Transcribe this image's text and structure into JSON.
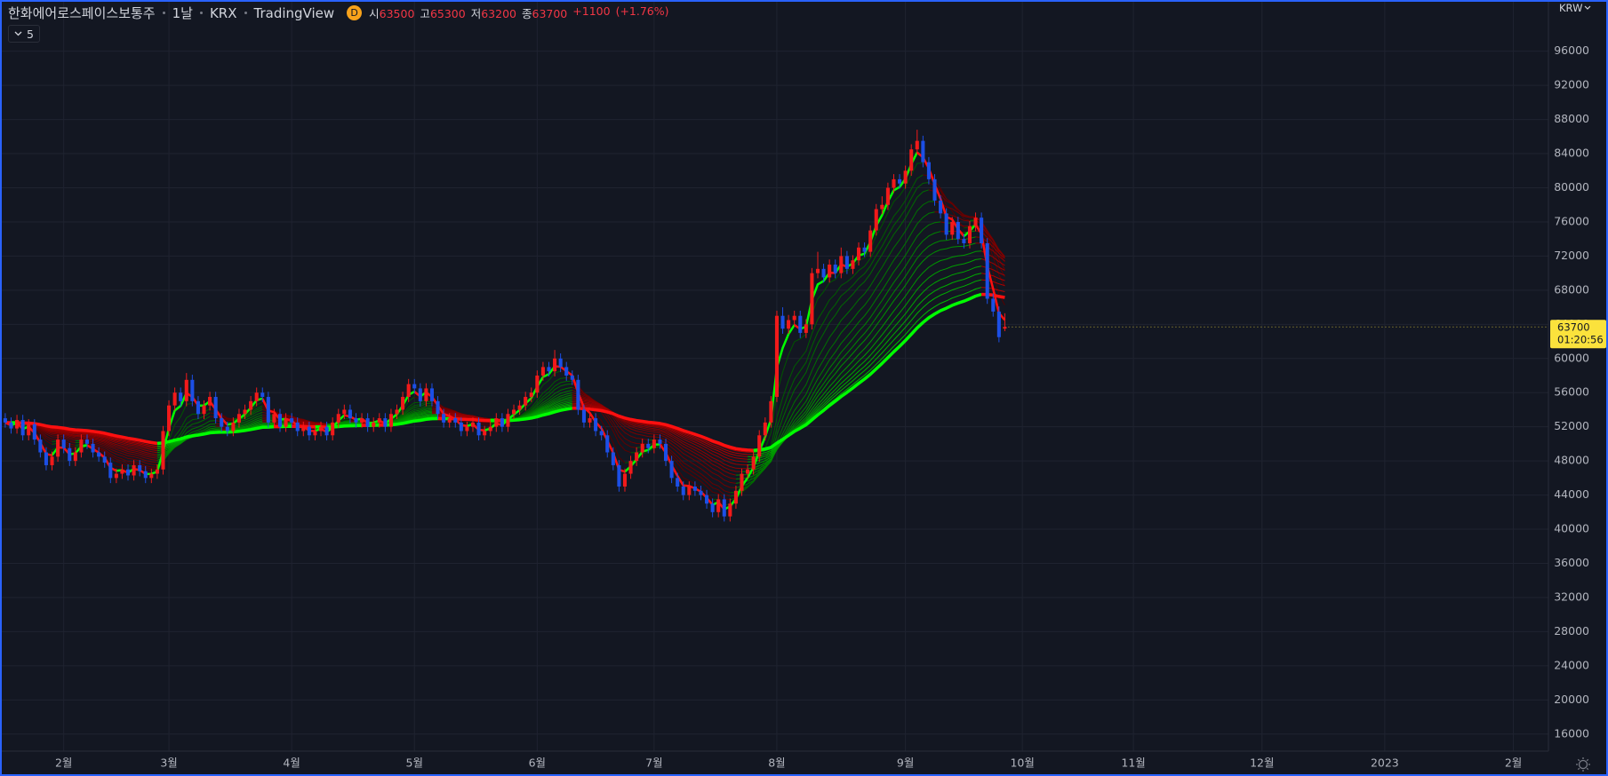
{
  "chart_data": {
    "type": "candlestick",
    "title": "한화에어로스페이스보통주",
    "interval": "1날",
    "exchange": "KRX",
    "source": "TradingView",
    "badge": "D",
    "ohlc_labels": [
      "시",
      "고",
      "저",
      "종"
    ],
    "change": "+1100",
    "change_pct": "(+1.76%)",
    "indicator_count": 5,
    "currency": "KRW",
    "countdown": "01:20:56",
    "up_color": "#f21a1a",
    "down_color": "#1c4fe6",
    "ema_periods": [
      3,
      5,
      8,
      10,
      12,
      15,
      18,
      21,
      24,
      27,
      30,
      34,
      38,
      42,
      46,
      50,
      55,
      60
    ],
    "xlim": [
      -0.9,
      264
    ],
    "xticks": [
      {
        "value": 10,
        "label": "2월"
      },
      {
        "value": 28,
        "label": "3월"
      },
      {
        "value": 49,
        "label": "4월"
      },
      {
        "value": 70,
        "label": "5월"
      },
      {
        "value": 91,
        "label": "6월"
      },
      {
        "value": 111,
        "label": "7월"
      },
      {
        "value": 132,
        "label": "8월"
      },
      {
        "value": 154,
        "label": "9월"
      },
      {
        "value": 174,
        "label": "10월"
      },
      {
        "value": 193,
        "label": "11월"
      },
      {
        "value": 215,
        "label": "12월"
      },
      {
        "value": 236,
        "label": "2023"
      },
      {
        "value": 258,
        "label": "2월"
      }
    ],
    "ylim": [
      14000,
      102000
    ],
    "yticks": [
      16000,
      20000,
      24000,
      28000,
      32000,
      36000,
      40000,
      44000,
      48000,
      52000,
      56000,
      60000,
      64000,
      68000,
      72000,
      76000,
      80000,
      84000,
      88000,
      92000,
      96000
    ],
    "grid": true,
    "open": [
      53000,
      52500,
      51800,
      52800,
      51000,
      52300,
      50500,
      49000,
      47500,
      48500,
      50500,
      49500,
      48000,
      49000,
      50500,
      50000,
      49000,
      48500,
      47800,
      46000,
      46500,
      47000,
      46300,
      47500,
      46800,
      46000,
      46500,
      47000,
      51500,
      54500,
      56000,
      55000,
      57500,
      55000,
      53500,
      54500,
      55500,
      53000,
      52000,
      51500,
      52500,
      53500,
      54000,
      55000,
      56000,
      55500,
      52500,
      53500,
      52000,
      53000,
      52500,
      51500,
      52000,
      51000,
      51500,
      52000,
      51000,
      52500,
      53500,
      54000,
      53000,
      52500,
      53000,
      52000,
      52500,
      53000,
      52000,
      53500,
      54000,
      55500,
      57000,
      56500,
      55000,
      56500,
      55000,
      53500,
      52500,
      53000,
      52500,
      51500,
      52000,
      52500,
      51000,
      51500,
      52000,
      53000,
      52000,
      53500,
      54000,
      54500,
      55500,
      56000,
      58000,
      59000,
      58500,
      60000,
      59000,
      58000,
      57500,
      54000,
      52500,
      53000,
      51500,
      51000,
      49000,
      47500,
      45000,
      46500,
      48000,
      49000,
      50000,
      49500,
      50500,
      50000,
      48000,
      46000,
      45000,
      44000,
      45000,
      44500,
      44000,
      43000,
      42000,
      43500,
      41500,
      43000,
      44500,
      46500,
      47000,
      48500,
      51000,
      52500,
      55500,
      65000,
      63500,
      64500,
      65000,
      63000,
      64000,
      70000,
      70500,
      69500,
      71000,
      70000,
      72000,
      70500,
      71500,
      73000,
      72500,
      75000,
      77500,
      78000,
      80000,
      81000,
      80500,
      82000,
      84500,
      85500,
      83000,
      81000,
      78500,
      77000,
      74500,
      76000,
      74000,
      73500,
      75500,
      76500,
      73500,
      67000,
      65500,
      63500
    ],
    "high": [
      53600,
      53100,
      53400,
      53400,
      52900,
      52900,
      51100,
      49600,
      49100,
      51100,
      51100,
      50100,
      49600,
      51100,
      51100,
      50600,
      49600,
      49100,
      48400,
      47100,
      47600,
      47600,
      48100,
      48100,
      47400,
      47100,
      47600,
      52100,
      55100,
      56600,
      56600,
      58300,
      58100,
      55600,
      55100,
      56100,
      56100,
      53600,
      52600,
      53100,
      54100,
      54600,
      55600,
      56600,
      56600,
      56100,
      54100,
      54100,
      53600,
      53600,
      53100,
      52600,
      52600,
      52100,
      52600,
      52600,
      53100,
      54100,
      54600,
      54600,
      53600,
      53600,
      53600,
      53100,
      53600,
      53600,
      54100,
      54600,
      56100,
      57600,
      57600,
      57100,
      57100,
      57100,
      55600,
      54100,
      53600,
      53600,
      53100,
      52600,
      53100,
      53100,
      52100,
      52600,
      53600,
      53600,
      54100,
      54600,
      55100,
      56100,
      56600,
      58600,
      59600,
      59600,
      61000,
      60600,
      59600,
      58600,
      58100,
      54600,
      53600,
      53600,
      52100,
      51600,
      49600,
      48100,
      47100,
      48600,
      49600,
      50600,
      50600,
      51100,
      51100,
      50600,
      48600,
      46600,
      45600,
      45600,
      45600,
      45100,
      44600,
      43600,
      44100,
      44100,
      43600,
      45100,
      47100,
      47600,
      49100,
      51600,
      53100,
      55600,
      65600,
      66000,
      65100,
      65600,
      65600,
      64600,
      70600,
      72500,
      71100,
      71600,
      71600,
      73000,
      72600,
      72100,
      73600,
      73600,
      75600,
      78100,
      79000,
      80600,
      81600,
      81600,
      82600,
      85100,
      86800,
      86100,
      83600,
      81600,
      79100,
      77600,
      76600,
      76600,
      74600,
      76100,
      77100,
      77100,
      74100,
      67600,
      66100,
      65300
    ],
    "low": [
      51900,
      51200,
      51200,
      50400,
      50400,
      49900,
      48400,
      46900,
      46900,
      47900,
      48900,
      47400,
      47400,
      48400,
      49400,
      48400,
      47900,
      47200,
      45400,
      45400,
      45900,
      45700,
      45700,
      46200,
      45400,
      45400,
      45900,
      46400,
      50900,
      53900,
      54400,
      54400,
      54400,
      52900,
      52900,
      53900,
      52400,
      51400,
      50900,
      50900,
      51900,
      52900,
      53400,
      54400,
      54900,
      51900,
      51900,
      51400,
      51400,
      51900,
      50900,
      50900,
      50400,
      50400,
      50900,
      50400,
      50400,
      51900,
      52900,
      52400,
      51900,
      51900,
      51400,
      51400,
      51900,
      51400,
      51400,
      52900,
      53400,
      54900,
      55900,
      54400,
      54400,
      54400,
      52900,
      51900,
      51900,
      51900,
      50900,
      50900,
      51400,
      50400,
      50400,
      50900,
      51400,
      51400,
      51400,
      52900,
      53400,
      53900,
      54900,
      55400,
      57400,
      57900,
      57900,
      58400,
      57400,
      56900,
      53400,
      51900,
      51900,
      50900,
      50400,
      48400,
      46900,
      44400,
      44400,
      45900,
      47400,
      48400,
      48900,
      48900,
      49400,
      47400,
      45400,
      44400,
      43400,
      43400,
      43900,
      43400,
      42400,
      41400,
      41400,
      40900,
      40900,
      42400,
      43900,
      45900,
      46400,
      47900,
      50400,
      51900,
      54900,
      62900,
      62900,
      63900,
      62400,
      62400,
      63400,
      69400,
      68900,
      68900,
      69400,
      69400,
      69900,
      69900,
      70900,
      71900,
      71900,
      74400,
      76900,
      77400,
      79400,
      79900,
      79900,
      81400,
      83900,
      82400,
      80400,
      77900,
      76400,
      73900,
      73900,
      73400,
      72900,
      72900,
      74900,
      72900,
      66400,
      64900,
      61900,
      63200
    ],
    "close": [
      52500,
      51800,
      52800,
      51000,
      52300,
      50500,
      49000,
      47500,
      48500,
      50500,
      49500,
      48000,
      49000,
      50500,
      50000,
      49000,
      48500,
      47800,
      46000,
      46500,
      47000,
      46300,
      47500,
      46800,
      46000,
      46500,
      47000,
      51500,
      54500,
      56000,
      55000,
      57500,
      55000,
      53500,
      54500,
      55500,
      53000,
      52000,
      51500,
      52500,
      53500,
      54000,
      55000,
      56000,
      55500,
      52500,
      53500,
      52000,
      53000,
      52500,
      51500,
      52000,
      51000,
      51500,
      52000,
      51000,
      52500,
      53500,
      54000,
      53000,
      52500,
      53000,
      52000,
      52500,
      53000,
      52000,
      53500,
      54000,
      55500,
      57000,
      56500,
      55000,
      56500,
      55000,
      53500,
      52500,
      53000,
      52500,
      51500,
      52000,
      52500,
      51000,
      51500,
      52000,
      53000,
      52000,
      53500,
      54000,
      54500,
      55500,
      56000,
      58000,
      59000,
      58500,
      60000,
      59000,
      58000,
      57500,
      54000,
      52500,
      53000,
      51500,
      51000,
      49000,
      47500,
      45000,
      46500,
      48000,
      49000,
      50000,
      49500,
      50500,
      50000,
      48000,
      46000,
      45000,
      44000,
      45000,
      44500,
      44000,
      43000,
      42000,
      43500,
      41500,
      43000,
      44500,
      46500,
      47000,
      48500,
      51000,
      52500,
      55000,
      65000,
      63500,
      64500,
      65000,
      63000,
      64000,
      70000,
      70500,
      69500,
      71000,
      70000,
      72000,
      70500,
      71500,
      73000,
      72500,
      75000,
      77500,
      78000,
      80000,
      81000,
      80500,
      82000,
      84500,
      85500,
      83000,
      81000,
      78500,
      77000,
      74500,
      76000,
      74000,
      73500,
      75500,
      76500,
      73500,
      67000,
      65500,
      62500,
      63700
    ]
  }
}
